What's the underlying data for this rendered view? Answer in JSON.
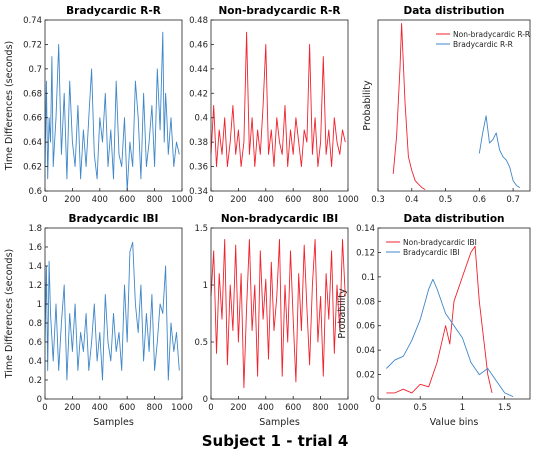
{
  "figure": {
    "suptitle": "Subject 1 - trial 4",
    "colors": {
      "bradycardic": "#3f87c8",
      "non_bradycardic": "#f0222d",
      "frame": "#222222"
    }
  },
  "chart_data": [
    {
      "id": "p1",
      "type": "line",
      "title": "Bradycardic R-R",
      "xlabel": "",
      "ylabel": "Time Differences (seconds)",
      "xlim": [
        0,
        1000
      ],
      "ylim": [
        0.6,
        0.74
      ],
      "xticks": [
        "0",
        "200",
        "400",
        "600",
        "800",
        "1000"
      ],
      "yticks": [
        "0.6",
        "0.62",
        "0.64",
        "0.66",
        "0.68",
        "0.7",
        "0.72",
        "0.74"
      ],
      "series": [
        {
          "color": "#3f87c8",
          "x": [
            0,
            10,
            20,
            30,
            40,
            50,
            60,
            80,
            100,
            120,
            140,
            160,
            180,
            200,
            220,
            240,
            260,
            280,
            300,
            320,
            340,
            360,
            380,
            400,
            420,
            440,
            460,
            480,
            500,
            520,
            540,
            560,
            580,
            600,
            620,
            640,
            660,
            680,
            700,
            720,
            740,
            760,
            780,
            800,
            820,
            840,
            860,
            870,
            880,
            890,
            900,
            920,
            940,
            960,
            980
          ],
          "y": [
            0.62,
            0.69,
            0.61,
            0.66,
            0.64,
            0.71,
            0.62,
            0.66,
            0.72,
            0.63,
            0.68,
            0.61,
            0.69,
            0.64,
            0.62,
            0.67,
            0.61,
            0.65,
            0.62,
            0.66,
            0.7,
            0.63,
            0.61,
            0.66,
            0.64,
            0.68,
            0.62,
            0.65,
            0.61,
            0.69,
            0.63,
            0.62,
            0.66,
            0.6,
            0.64,
            0.62,
            0.69,
            0.66,
            0.61,
            0.68,
            0.62,
            0.64,
            0.67,
            0.62,
            0.7,
            0.65,
            0.73,
            0.64,
            0.68,
            0.66,
            0.63,
            0.66,
            0.62,
            0.64,
            0.63
          ]
        }
      ]
    },
    {
      "id": "p2",
      "type": "line",
      "title": "Non-bradycardic R-R",
      "xlabel": "",
      "ylabel": "",
      "xlim": [
        0,
        1000
      ],
      "ylim": [
        0.34,
        0.48
      ],
      "xticks": [
        "0",
        "200",
        "400",
        "600",
        "800",
        "1000"
      ],
      "yticks": [
        "0.34",
        "0.36",
        "0.38",
        "0.4",
        "0.42",
        "0.44",
        "0.46",
        "0.48"
      ],
      "series": [
        {
          "color": "#f0222d",
          "x": [
            0,
            20,
            40,
            60,
            80,
            100,
            120,
            140,
            160,
            180,
            200,
            220,
            240,
            260,
            280,
            300,
            320,
            340,
            360,
            380,
            400,
            420,
            440,
            460,
            480,
            500,
            520,
            540,
            560,
            580,
            600,
            620,
            640,
            660,
            680,
            700,
            720,
            740,
            760,
            780,
            800,
            820,
            840,
            860,
            880,
            900,
            920,
            940,
            960,
            980
          ],
          "y": [
            0.37,
            0.41,
            0.36,
            0.39,
            0.37,
            0.4,
            0.36,
            0.38,
            0.41,
            0.37,
            0.39,
            0.36,
            0.38,
            0.47,
            0.37,
            0.4,
            0.36,
            0.39,
            0.37,
            0.41,
            0.46,
            0.37,
            0.39,
            0.36,
            0.4,
            0.38,
            0.37,
            0.41,
            0.36,
            0.39,
            0.37,
            0.4,
            0.38,
            0.36,
            0.39,
            0.38,
            0.46,
            0.37,
            0.4,
            0.36,
            0.38,
            0.45,
            0.37,
            0.39,
            0.36,
            0.4,
            0.38,
            0.37,
            0.39,
            0.38
          ]
        }
      ]
    },
    {
      "id": "p3",
      "type": "line",
      "title": "Data distribution",
      "xlabel": "",
      "ylabel": "Probability",
      "xlim": [
        0.3,
        0.75
      ],
      "ylim": [
        0,
        0.25
      ],
      "xticks": [
        "0.3",
        "0.4",
        "0.5",
        "0.6",
        "0.7"
      ],
      "yticks": [],
      "legend": "top-right",
      "series": [
        {
          "name": "Non-bradycardic R-R",
          "color": "#f0222d",
          "x": [
            0.345,
            0.355,
            0.365,
            0.37,
            0.38,
            0.39,
            0.4,
            0.41,
            0.42,
            0.43,
            0.44
          ],
          "y": [
            0.025,
            0.08,
            0.18,
            0.245,
            0.13,
            0.05,
            0.03,
            0.015,
            0.01,
            0.005,
            0.002
          ]
        },
        {
          "name": "Bradycardic R-R",
          "color": "#3f87c8",
          "x": [
            0.6,
            0.61,
            0.62,
            0.63,
            0.64,
            0.65,
            0.66,
            0.67,
            0.68,
            0.69,
            0.7,
            0.71,
            0.72
          ],
          "y": [
            0.055,
            0.085,
            0.11,
            0.07,
            0.075,
            0.085,
            0.06,
            0.05,
            0.045,
            0.035,
            0.015,
            0.008,
            0.005
          ]
        }
      ]
    },
    {
      "id": "p4",
      "type": "line",
      "title": "Bradycardic IBI",
      "xlabel": "Samples",
      "ylabel": "Time Differences (seconds)",
      "xlim": [
        0,
        1000
      ],
      "ylim": [
        0,
        1.8
      ],
      "xticks": [
        "0",
        "200",
        "400",
        "600",
        "800",
        "1000"
      ],
      "yticks": [
        "0",
        "0.2",
        "0.4",
        "0.6",
        "0.8",
        "1",
        "1.2",
        "1.4",
        "1.6",
        "1.8"
      ],
      "series": [
        {
          "color": "#3f87c8",
          "x": [
            0,
            10,
            20,
            30,
            40,
            60,
            80,
            100,
            120,
            140,
            160,
            180,
            200,
            220,
            240,
            260,
            280,
            300,
            320,
            340,
            360,
            380,
            400,
            420,
            440,
            460,
            480,
            500,
            520,
            540,
            560,
            580,
            600,
            620,
            640,
            660,
            680,
            700,
            720,
            740,
            760,
            780,
            800,
            820,
            840,
            860,
            880,
            900,
            920,
            940,
            960,
            980
          ],
          "y": [
            0.6,
            1.4,
            0.3,
            1.45,
            0.9,
            0.4,
            1.0,
            0.3,
            0.8,
            1.2,
            0.2,
            0.9,
            0.5,
            1.0,
            0.3,
            0.7,
            0.5,
            0.9,
            0.3,
            0.6,
            1.0,
            0.4,
            0.7,
            0.2,
            1.1,
            0.6,
            0.4,
            0.9,
            0.5,
            0.7,
            0.3,
            1.2,
            0.6,
            1.55,
            1.65,
            1.0,
            0.7,
            1.2,
            0.4,
            0.9,
            0.5,
            1.1,
            0.3,
            0.6,
            1.0,
            0.9,
            1.4,
            0.2,
            0.8,
            0.5,
            0.7,
            0.3
          ]
        }
      ]
    },
    {
      "id": "p5",
      "type": "line",
      "title": "Non-bradycardic IBI",
      "xlabel": "Samples",
      "ylabel": "",
      "xlim": [
        0,
        1000
      ],
      "ylim": [
        0,
        1.5
      ],
      "xticks": [
        "0",
        "200",
        "400",
        "600",
        "800",
        "1000"
      ],
      "yticks": [
        "0",
        "0.5",
        "1",
        "1.5"
      ],
      "series": [
        {
          "color": "#f0222d",
          "x": [
            0,
            20,
            40,
            60,
            80,
            100,
            120,
            140,
            160,
            180,
            200,
            220,
            240,
            260,
            280,
            300,
            320,
            340,
            360,
            380,
            400,
            420,
            440,
            460,
            480,
            500,
            520,
            540,
            560,
            580,
            600,
            620,
            640,
            660,
            680,
            700,
            720,
            740,
            760,
            780,
            800,
            820,
            840,
            860,
            880,
            900,
            920,
            940,
            960,
            980
          ],
          "y": [
            0.9,
            1.3,
            0.4,
            1.1,
            0.7,
            1.4,
            0.3,
            1.0,
            0.6,
            1.35,
            0.5,
            1.1,
            0.1,
            0.8,
            1.4,
            0.6,
            1.0,
            0.2,
            1.3,
            0.7,
            1.05,
            0.35,
            1.2,
            0.6,
            0.9,
            1.4,
            0.2,
            1.0,
            0.5,
            1.3,
            0.7,
            0.15,
            1.1,
            0.6,
            1.35,
            0.8,
            0.3,
            1.0,
            1.4,
            0.5,
            0.9,
            0.2,
            1.1,
            0.7,
            1.3,
            0.4,
            1.0,
            0.6,
            1.4,
            0.9
          ]
        }
      ]
    },
    {
      "id": "p6",
      "type": "line",
      "title": "Data distribution",
      "xlabel": "Value bins",
      "ylabel": "Probability",
      "xlim": [
        0,
        1.8
      ],
      "ylim": [
        0,
        0.14
      ],
      "xticks": [
        "0",
        "0.5",
        "1",
        "1.5"
      ],
      "yticks": [
        "0",
        "0.02",
        "0.04",
        "0.06",
        "0.08",
        "0.1",
        "0.12",
        "0.14"
      ],
      "legend": "top-left",
      "series": [
        {
          "name": "Non-bradycardic IBI",
          "color": "#f0222d",
          "x": [
            0.1,
            0.2,
            0.3,
            0.4,
            0.5,
            0.6,
            0.7,
            0.8,
            0.85,
            0.9,
            1.0,
            1.1,
            1.15,
            1.2,
            1.3,
            1.35
          ],
          "y": [
            0.005,
            0.005,
            0.008,
            0.005,
            0.012,
            0.01,
            0.03,
            0.06,
            0.045,
            0.08,
            0.1,
            0.12,
            0.125,
            0.08,
            0.02,
            0.005
          ]
        },
        {
          "name": "Bradycardic IBI",
          "color": "#3f87c8",
          "x": [
            0.1,
            0.2,
            0.3,
            0.4,
            0.5,
            0.6,
            0.65,
            0.7,
            0.8,
            0.9,
            1.0,
            1.1,
            1.2,
            1.3,
            1.4,
            1.5,
            1.6
          ],
          "y": [
            0.025,
            0.032,
            0.035,
            0.048,
            0.065,
            0.09,
            0.098,
            0.09,
            0.07,
            0.06,
            0.05,
            0.03,
            0.02,
            0.025,
            0.015,
            0.005,
            0.002
          ]
        }
      ]
    }
  ]
}
